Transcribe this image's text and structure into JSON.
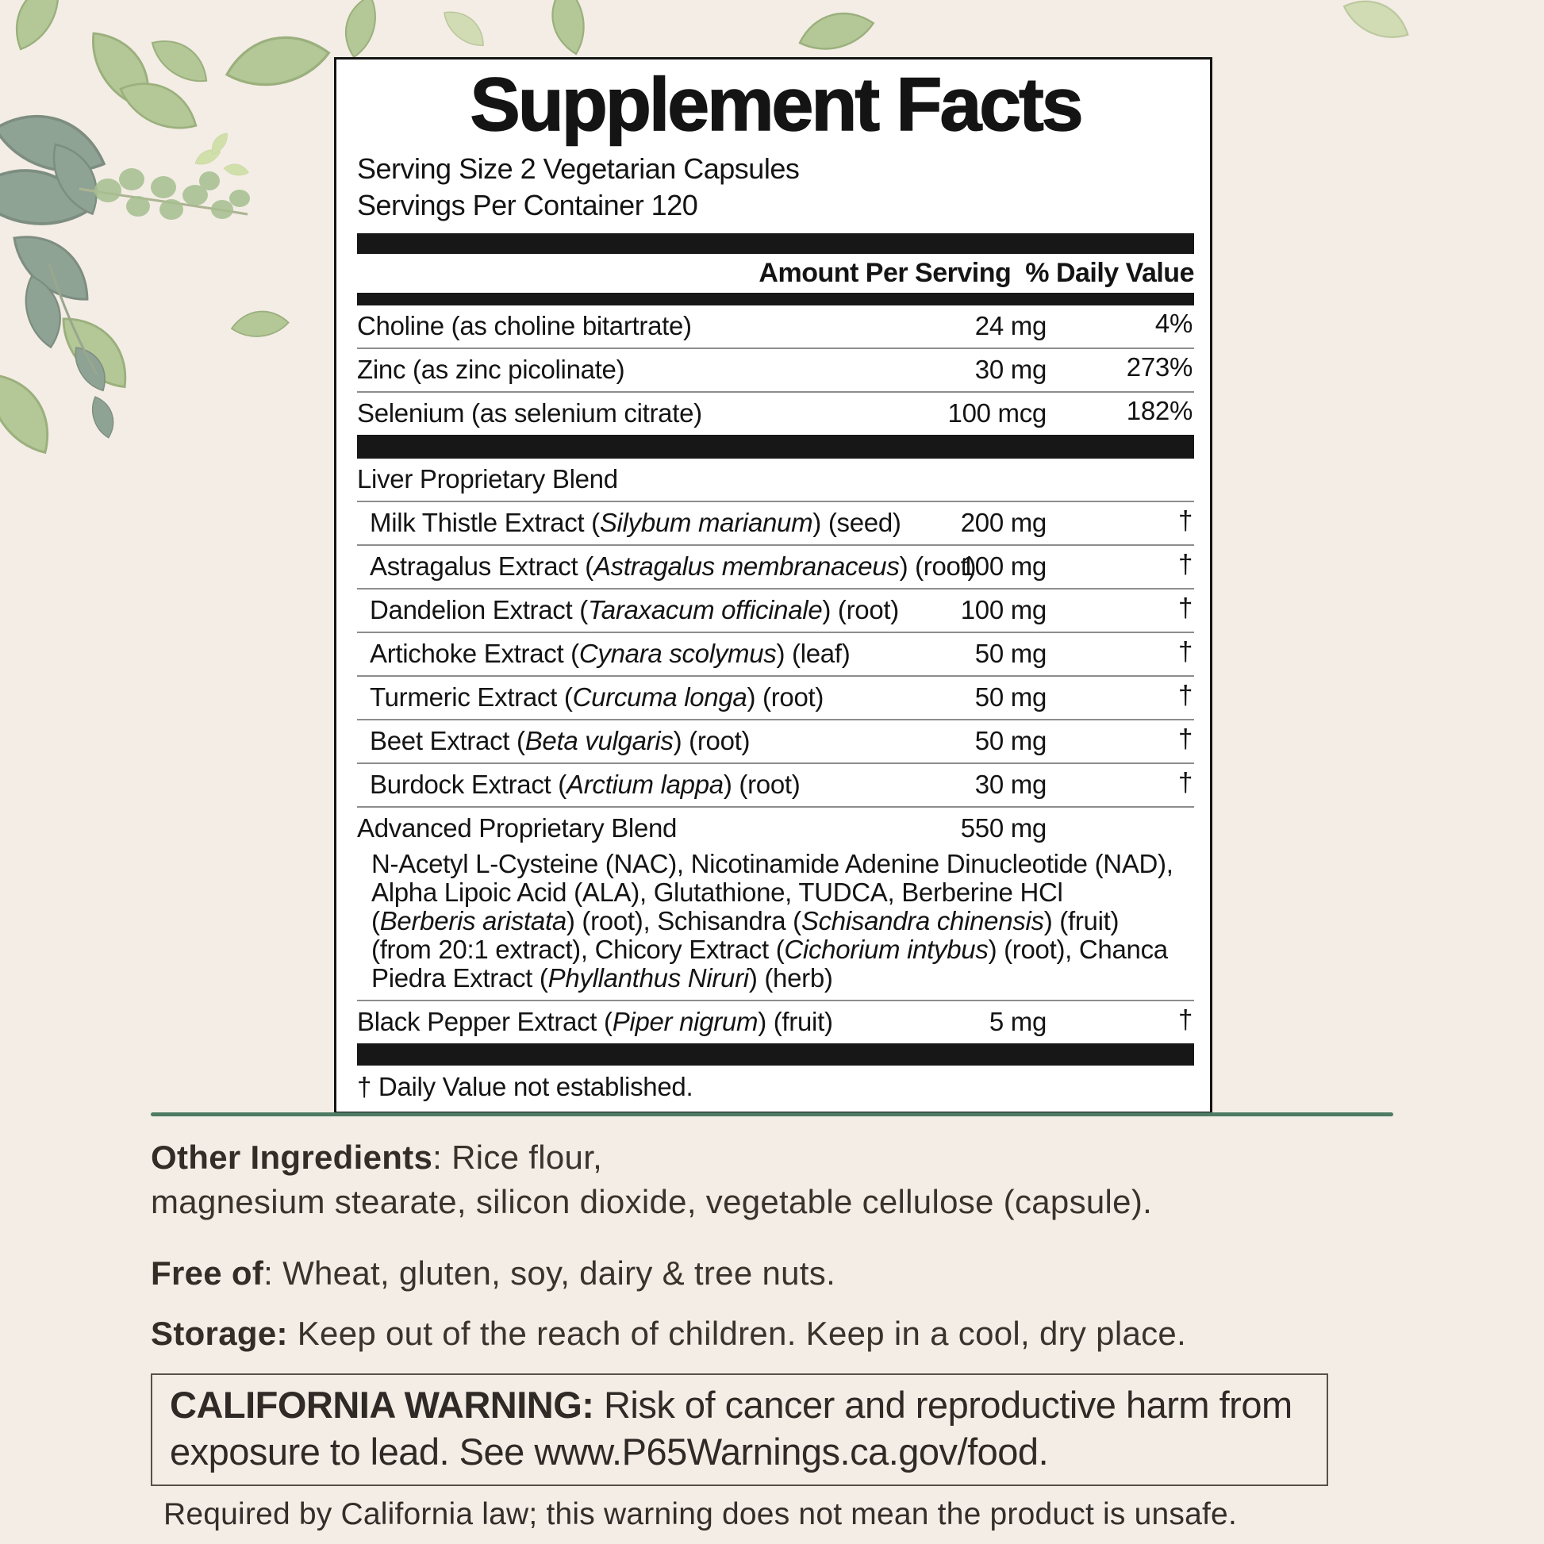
{
  "background_color": "#f4ede6",
  "accent_green": "#4d7a62",
  "decor": {
    "icon": "watercolor-leaves"
  },
  "panel": {
    "title": "Supplement Facts",
    "serving_size": "Serving Size 2 Vegetarian Capsules",
    "servings_per_container": "Servings Per Container 120",
    "columns": {
      "amount": "Amount Per Serving",
      "daily_value": "% Daily Value"
    },
    "nutrients": [
      {
        "name": "Choline (as choline bitartrate)",
        "amount": "24 mg",
        "daily_value": "4%"
      },
      {
        "name": "Zinc (as zinc picolinate)",
        "amount": "30 mg",
        "daily_value": "273%"
      },
      {
        "name": "Selenium (as selenium citrate)",
        "amount": "100 mcg",
        "daily_value": "182%"
      }
    ],
    "liver_blend": {
      "label": "Liver Proprietary Blend",
      "items": [
        {
          "segments": [
            {
              "t": "Milk Thistle Extract ("
            },
            {
              "t": "Silybum marianum",
              "i": true
            },
            {
              "t": ") (seed)"
            }
          ],
          "amount": "200 mg",
          "daily_value": "†"
        },
        {
          "segments": [
            {
              "t": "Astragalus Extract ("
            },
            {
              "t": "Astragalus membranaceus",
              "i": true
            },
            {
              "t": ") (root)"
            }
          ],
          "amount": "100 mg",
          "daily_value": "†"
        },
        {
          "segments": [
            {
              "t": "Dandelion Extract ("
            },
            {
              "t": "Taraxacum officinale",
              "i": true
            },
            {
              "t": ") (root)"
            }
          ],
          "amount": "100 mg",
          "daily_value": "†"
        },
        {
          "segments": [
            {
              "t": "Artichoke Extract ("
            },
            {
              "t": "Cynara scolymus",
              "i": true
            },
            {
              "t": ") (leaf)"
            }
          ],
          "amount": "50 mg",
          "daily_value": "†"
        },
        {
          "segments": [
            {
              "t": "Turmeric Extract ("
            },
            {
              "t": "Curcuma longa",
              "i": true
            },
            {
              "t": ") (root)"
            }
          ],
          "amount": "50 mg",
          "daily_value": "†"
        },
        {
          "segments": [
            {
              "t": "Beet Extract ("
            },
            {
              "t": "Beta vulgaris",
              "i": true
            },
            {
              "t": ") (root)"
            }
          ],
          "amount": "50 mg",
          "daily_value": "†"
        },
        {
          "segments": [
            {
              "t": "Burdock Extract ("
            },
            {
              "t": "Arctium lappa",
              "i": true
            },
            {
              "t": ") (root)"
            }
          ],
          "amount": "30 mg",
          "daily_value": "†"
        }
      ]
    },
    "advanced_blend": {
      "label": "Advanced Proprietary Blend",
      "amount": "550 mg",
      "lines": [
        [
          {
            "t": "N-Acetyl L-Cysteine (NAC), Nicotinamide Adenine Dinucleotide (NAD),"
          }
        ],
        [
          {
            "t": "Alpha Lipoic Acid (ALA), Glutathione, TUDCA, Berberine HCl"
          }
        ],
        [
          {
            "t": "("
          },
          {
            "t": "Berberis aristata",
            "i": true
          },
          {
            "t": ") (root), Schisandra ("
          },
          {
            "t": "Schisandra chinensis",
            "i": true
          },
          {
            "t": ") (fruit)"
          }
        ],
        [
          {
            "t": "(from 20:1 extract), Chicory Extract ("
          },
          {
            "t": "Cichorium intybus",
            "i": true
          },
          {
            "t": ") (root), Chanca"
          }
        ],
        [
          {
            "t": "Piedra Extract ("
          },
          {
            "t": "Phyllanthus Niruri",
            "i": true
          },
          {
            "t": ") (herb)"
          }
        ]
      ]
    },
    "black_pepper": {
      "segments": [
        {
          "t": "Black Pepper Extract ("
        },
        {
          "t": "Piper nigrum",
          "i": true
        },
        {
          "t": ") (fruit)"
        }
      ],
      "amount": "5 mg",
      "daily_value": "†"
    },
    "footnote": "† Daily Value not established."
  },
  "lower": {
    "other_ingredients_label": "Other Ingredients",
    "other_ingredients_line1": ": Rice flour,",
    "other_ingredients_line2": "magnesium stearate, silicon dioxide, vegetable cellulose (capsule).",
    "free_of_label": "Free of",
    "free_of_text": ": Wheat, gluten, soy, dairy & tree nuts.",
    "storage_label": "Storage:",
    "storage_text": " Keep out of the reach of children. Keep in a cool, dry place.",
    "warning_label": "CALIFORNIA WARNING:",
    "warning_text": " Risk of cancer and reproductive harm from exposure to lead. See www.P65Warnings.ca.gov/food.",
    "warning_note": "Required by California law; this warning does not mean the product is unsafe."
  }
}
